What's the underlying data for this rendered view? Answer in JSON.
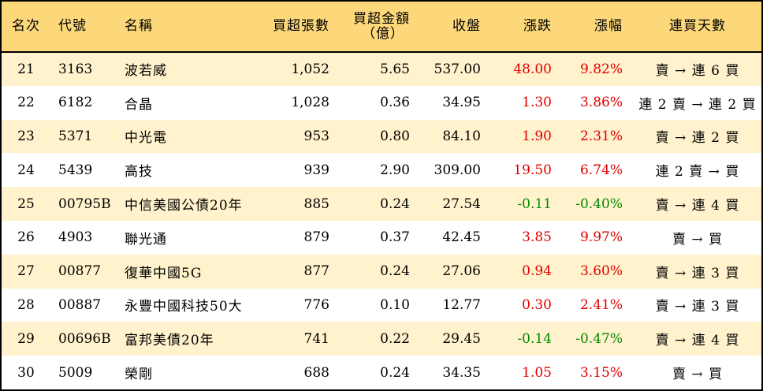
{
  "headers": {
    "rank": "名次",
    "code": "代號",
    "name": "名稱",
    "net_lots": "買超張數",
    "net_amount_line1": "買超金額",
    "net_amount_line2": "（億）",
    "close": "收盤",
    "change": "漲跌",
    "change_pct": "漲幅",
    "streak": "連買天數"
  },
  "colors": {
    "header_bg": "#fdd87a",
    "odd_row_bg": "#fff2cc",
    "up": "#e00000",
    "down": "#008a00"
  },
  "rows": [
    {
      "rank": "21",
      "code": "3163",
      "name": "波若威",
      "net_lots": "1,052",
      "net_amount": "5.65",
      "close": "537.00",
      "change": "48.00",
      "change_pct": "9.82%",
      "direction": "up",
      "streak": "賣 → 連 6 買"
    },
    {
      "rank": "22",
      "code": "6182",
      "name": "合晶",
      "net_lots": "1,028",
      "net_amount": "0.36",
      "close": "34.95",
      "change": "1.30",
      "change_pct": "3.86%",
      "direction": "up",
      "streak": "連 2 賣 → 連 2 買"
    },
    {
      "rank": "23",
      "code": "5371",
      "name": "中光電",
      "net_lots": "953",
      "net_amount": "0.80",
      "close": "84.10",
      "change": "1.90",
      "change_pct": "2.31%",
      "direction": "up",
      "streak": "賣 → 連 2 買"
    },
    {
      "rank": "24",
      "code": "5439",
      "name": "高技",
      "net_lots": "939",
      "net_amount": "2.90",
      "close": "309.00",
      "change": "19.50",
      "change_pct": "6.74%",
      "direction": "up",
      "streak": "連 2 賣 → 買"
    },
    {
      "rank": "25",
      "code": "00795B",
      "name": "中信美國公債20年",
      "net_lots": "885",
      "net_amount": "0.24",
      "close": "27.54",
      "change": "-0.11",
      "change_pct": "-0.40%",
      "direction": "down",
      "streak": "賣 → 連 4 買"
    },
    {
      "rank": "26",
      "code": "4903",
      "name": "聯光通",
      "net_lots": "879",
      "net_amount": "0.37",
      "close": "42.45",
      "change": "3.85",
      "change_pct": "9.97%",
      "direction": "up",
      "streak": "賣 → 買"
    },
    {
      "rank": "27",
      "code": "00877",
      "name": "復華中國5G",
      "net_lots": "877",
      "net_amount": "0.24",
      "close": "27.06",
      "change": "0.94",
      "change_pct": "3.60%",
      "direction": "up",
      "streak": "賣 → 連 3 買"
    },
    {
      "rank": "28",
      "code": "00887",
      "name": "永豐中國科技50大",
      "net_lots": "776",
      "net_amount": "0.10",
      "close": "12.77",
      "change": "0.30",
      "change_pct": "2.41%",
      "direction": "up",
      "streak": "賣 → 連 3 買"
    },
    {
      "rank": "29",
      "code": "00696B",
      "name": "富邦美債20年",
      "net_lots": "741",
      "net_amount": "0.22",
      "close": "29.45",
      "change": "-0.14",
      "change_pct": "-0.47%",
      "direction": "down",
      "streak": "賣 → 連 4 買"
    },
    {
      "rank": "30",
      "code": "5009",
      "name": "榮剛",
      "net_lots": "688",
      "net_amount": "0.24",
      "close": "34.35",
      "change": "1.05",
      "change_pct": "3.15%",
      "direction": "up",
      "streak": "賣 → 買"
    }
  ]
}
